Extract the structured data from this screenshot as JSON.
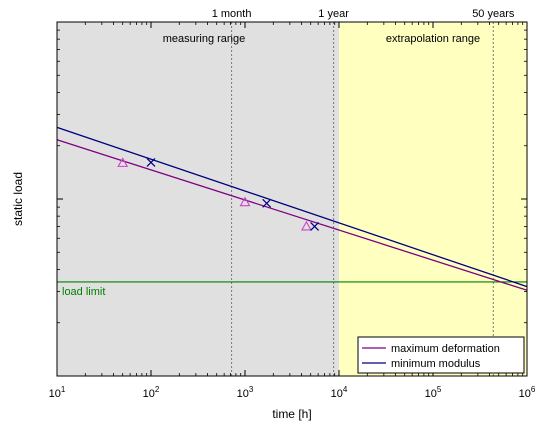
{
  "chart_data": {
    "type": "line",
    "title": "",
    "xlabel": "time [h]",
    "ylabel": "static load",
    "x_scale": "log",
    "xlim": [
      10,
      1000000
    ],
    "y_scale": "log",
    "ylim": [
      1,
      100
    ],
    "x_ticks": [
      {
        "value": 10,
        "base": "10",
        "exp": "1"
      },
      {
        "value": 100,
        "base": "10",
        "exp": "2"
      },
      {
        "value": 1000,
        "base": "10",
        "exp": "3"
      },
      {
        "value": 10000,
        "base": "10",
        "exp": "4"
      },
      {
        "value": 100000,
        "base": "10",
        "exp": "5"
      },
      {
        "value": 1000000,
        "base": "10",
        "exp": "6"
      }
    ],
    "y_major_ticks": [
      1,
      10,
      100
    ],
    "y_tick_labels_shown": false,
    "regions": [
      {
        "label": "measuring range",
        "x_from": 10,
        "x_to": 10000,
        "color": "#e0e0e0"
      },
      {
        "label": "extrapolation range",
        "x_from": 10000,
        "x_to": 1000000,
        "color": "#ffffc0"
      }
    ],
    "reference_lines": [
      {
        "label": "1 month",
        "x": 720
      },
      {
        "label": "1 year",
        "x": 8760
      },
      {
        "label": "50 years",
        "x": 438000
      }
    ],
    "load_limit": {
      "label": "load limit",
      "y": 3.4,
      "color": "#008000"
    },
    "series": [
      {
        "name": "maximum deformation",
        "color": "#800080",
        "marker": "triangle",
        "line": {
          "x": [
            10,
            1000000
          ],
          "y": [
            21.6,
            3.05
          ]
        },
        "points": [
          {
            "x": 50,
            "y": 16.0
          },
          {
            "x": 1000,
            "y": 9.6
          },
          {
            "x": 4500,
            "y": 7.0
          }
        ]
      },
      {
        "name": "minimum modulus",
        "color": "#000080",
        "marker": "x",
        "line": {
          "x": [
            10,
            1000000
          ],
          "y": [
            25.4,
            3.2
          ]
        },
        "points": [
          {
            "x": 100,
            "y": 16.1
          },
          {
            "x": 1700,
            "y": 9.45
          },
          {
            "x": 5500,
            "y": 7.0
          }
        ]
      }
    ],
    "legend": {
      "placement": "bottom-right",
      "entries": [
        "maximum deformation",
        "minimum modulus"
      ]
    },
    "grid": false
  }
}
